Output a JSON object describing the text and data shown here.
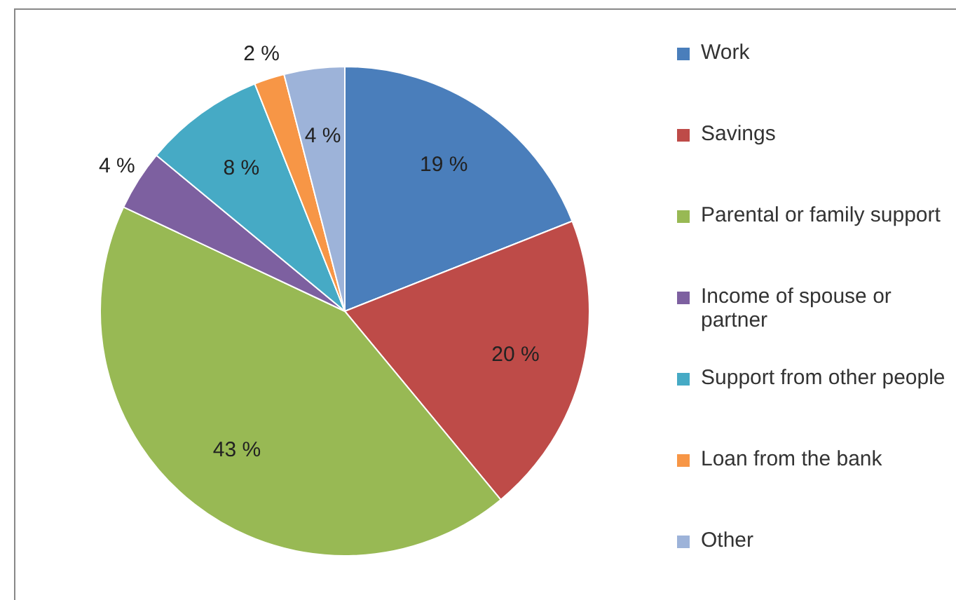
{
  "chart_data": {
    "type": "pie",
    "categories": [
      "Work",
      "Savings",
      "Parental or family support",
      "Income of spouse or partner",
      "Support from other people",
      "Loan from the bank",
      "Other"
    ],
    "values": [
      19,
      20,
      43,
      4,
      8,
      2,
      4
    ],
    "value_labels": [
      "19 %",
      "20 %",
      "43 %",
      "4 %",
      "8 %",
      "2 %",
      "4 %"
    ],
    "colors": [
      "#4a7ebb",
      "#be4b48",
      "#98b954",
      "#7d60a0",
      "#46aac5",
      "#f79646",
      "#9db3d9"
    ],
    "legend": "right"
  }
}
